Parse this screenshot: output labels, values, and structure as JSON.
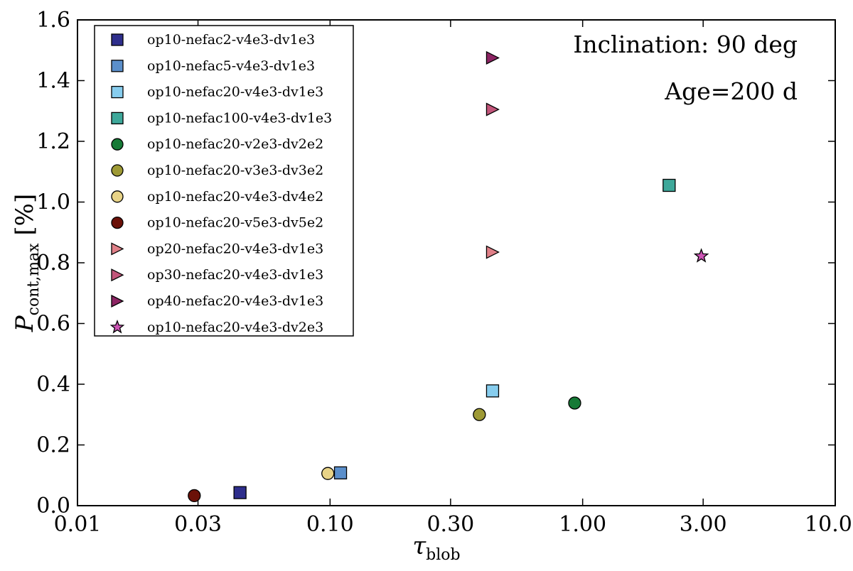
{
  "chart_data": {
    "type": "scatter",
    "xscale": "log",
    "xlim": [
      0.01,
      10.0
    ],
    "ylim": [
      0.0,
      1.6
    ],
    "xticks": [
      0.01,
      0.03,
      0.1,
      0.3,
      1.0,
      3.0,
      10.0
    ],
    "xtick_labels": [
      "0.01",
      "0.03",
      "0.10",
      "0.30",
      "1.00",
      "3.00",
      "10.00"
    ],
    "yticks": [
      0.0,
      0.2,
      0.4,
      0.6,
      0.8,
      1.0,
      1.2,
      1.4,
      1.6
    ],
    "ytick_labels": [
      "0.0",
      "0.2",
      "0.4",
      "0.6",
      "0.8",
      "1.0",
      "1.2",
      "1.4",
      "1.6"
    ],
    "xlabel": {
      "main": "τ",
      "sub": "blob"
    },
    "ylabel": {
      "main": "P",
      "sub": "cont,max",
      "suffix": " [%]"
    },
    "annotations": [
      "Inclination: 90 deg",
      "Age=200 d"
    ],
    "legend_position": "upper-left",
    "series": [
      {
        "name": "op10-nefac2-v4e3-dv1e3",
        "marker": "square",
        "color": "#2e2e8c",
        "x": 0.044,
        "y": 0.043
      },
      {
        "name": "op10-nefac5-v4e3-dv1e3",
        "marker": "square",
        "color": "#5b8fcb",
        "x": 0.11,
        "y": 0.108
      },
      {
        "name": "op10-nefac20-v4e3-dv1e3",
        "marker": "square",
        "color": "#87cdee",
        "x": 0.44,
        "y": 0.378
      },
      {
        "name": "op10-nefac100-v4e3-dv1e3",
        "marker": "square",
        "color": "#3ea89a",
        "x": 2.2,
        "y": 1.055
      },
      {
        "name": "op10-nefac20-v2e3-dv2e2",
        "marker": "circle",
        "color": "#167a36",
        "x": 0.93,
        "y": 0.338
      },
      {
        "name": "op10-nefac20-v3e3-dv3e2",
        "marker": "circle",
        "color": "#9e9a35",
        "x": 0.39,
        "y": 0.3
      },
      {
        "name": "op10-nefac20-v4e3-dv4e2",
        "marker": "circle",
        "color": "#e8d387",
        "x": 0.098,
        "y": 0.106
      },
      {
        "name": "op10-nefac20-v5e3-dv5e2",
        "marker": "circle",
        "color": "#6b1108",
        "x": 0.029,
        "y": 0.033
      },
      {
        "name": "op20-nefac20-v4e3-dv1e3",
        "marker": "triangle-right",
        "color": "#e08088",
        "x": 0.44,
        "y": 0.835
      },
      {
        "name": "op30-nefac20-v4e3-dv1e3",
        "marker": "triangle-right",
        "color": "#c2557a",
        "x": 0.44,
        "y": 1.305
      },
      {
        "name": "op40-nefac20-v4e3-dv1e3",
        "marker": "triangle-right",
        "color": "#8c2463",
        "x": 0.44,
        "y": 1.475
      },
      {
        "name": "op10-nefac20-v4e3-dv2e3",
        "marker": "star",
        "color": "#cc55b5",
        "x": 2.95,
        "y": 0.822
      }
    ]
  }
}
